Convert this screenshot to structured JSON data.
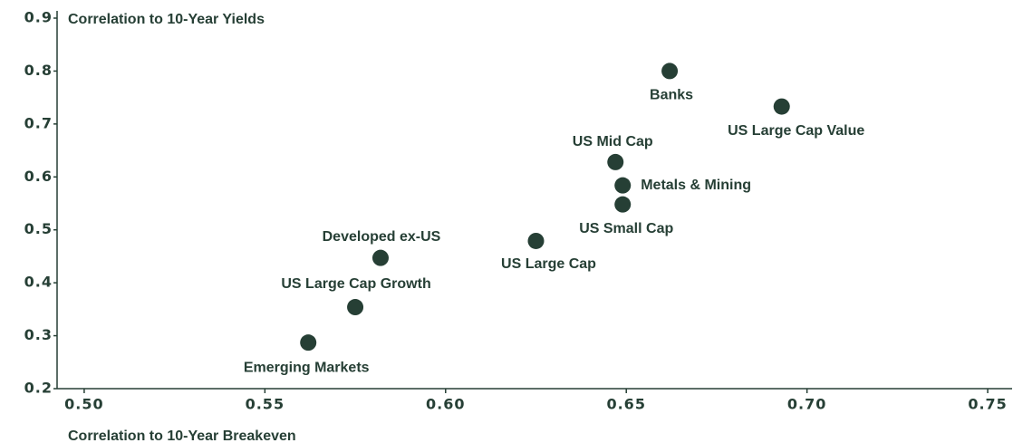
{
  "chart_data": {
    "type": "scatter",
    "y_label": "Correlation to 10-Year Yields",
    "x_label": "Correlation to 10-Year Breakeven",
    "labels": [
      "Banks",
      "US Large Cap Value",
      "US Mid Cap",
      "Metals & Mining",
      "US Small Cap",
      "US Large Cap",
      "Developed ex-US",
      "US Large Cap Growth",
      "Emerging Markets"
    ],
    "x": [
      0.662,
      0.693,
      0.647,
      0.649,
      0.649,
      0.625,
      0.582,
      0.575,
      0.562
    ],
    "values": [
      0.8,
      0.733,
      0.628,
      0.584,
      0.548,
      0.479,
      0.447,
      0.354,
      0.287
    ],
    "color": "#263f35",
    "xlim": [
      0.4925,
      0.757
    ],
    "ylim": [
      0.2,
      0.9
    ],
    "xticks": [
      {
        "value": 0.5,
        "label": "0.50"
      },
      0.55,
      {
        "value": 0.6,
        "label": "0.60"
      },
      0.65,
      {
        "value": 0.7,
        "label": "0.70"
      },
      0.75
    ],
    "yticks": [
      0.2,
      0.3,
      0.4,
      0.5,
      0.6,
      0.7,
      0.8,
      0.9
    ]
  }
}
